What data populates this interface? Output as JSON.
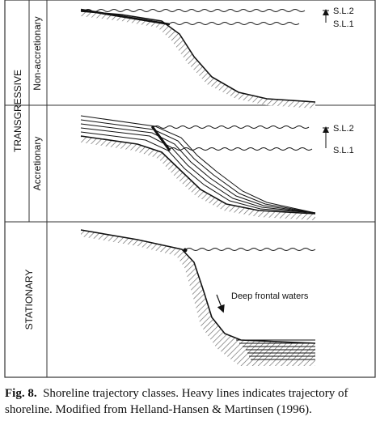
{
  "panels": {
    "group_label": "TRANSGRESSIVE",
    "non_accretionary": {
      "label": "Non-accretionary",
      "sea_levels": [
        "S.L.2",
        "S.L.1"
      ]
    },
    "accretionary": {
      "label": "Accretionary",
      "sea_levels": [
        "S.L.2",
        "S.L.1"
      ]
    },
    "stationary": {
      "label": "STATIONARY",
      "annotation": "Deep frontal waters"
    }
  },
  "caption": {
    "fig": "Fig. 8.",
    "text": "Shoreline trajectory classes. Heavy lines indicates trajectory of shoreline. Modified from Helland-Hansen & Martinsen (1996)."
  }
}
